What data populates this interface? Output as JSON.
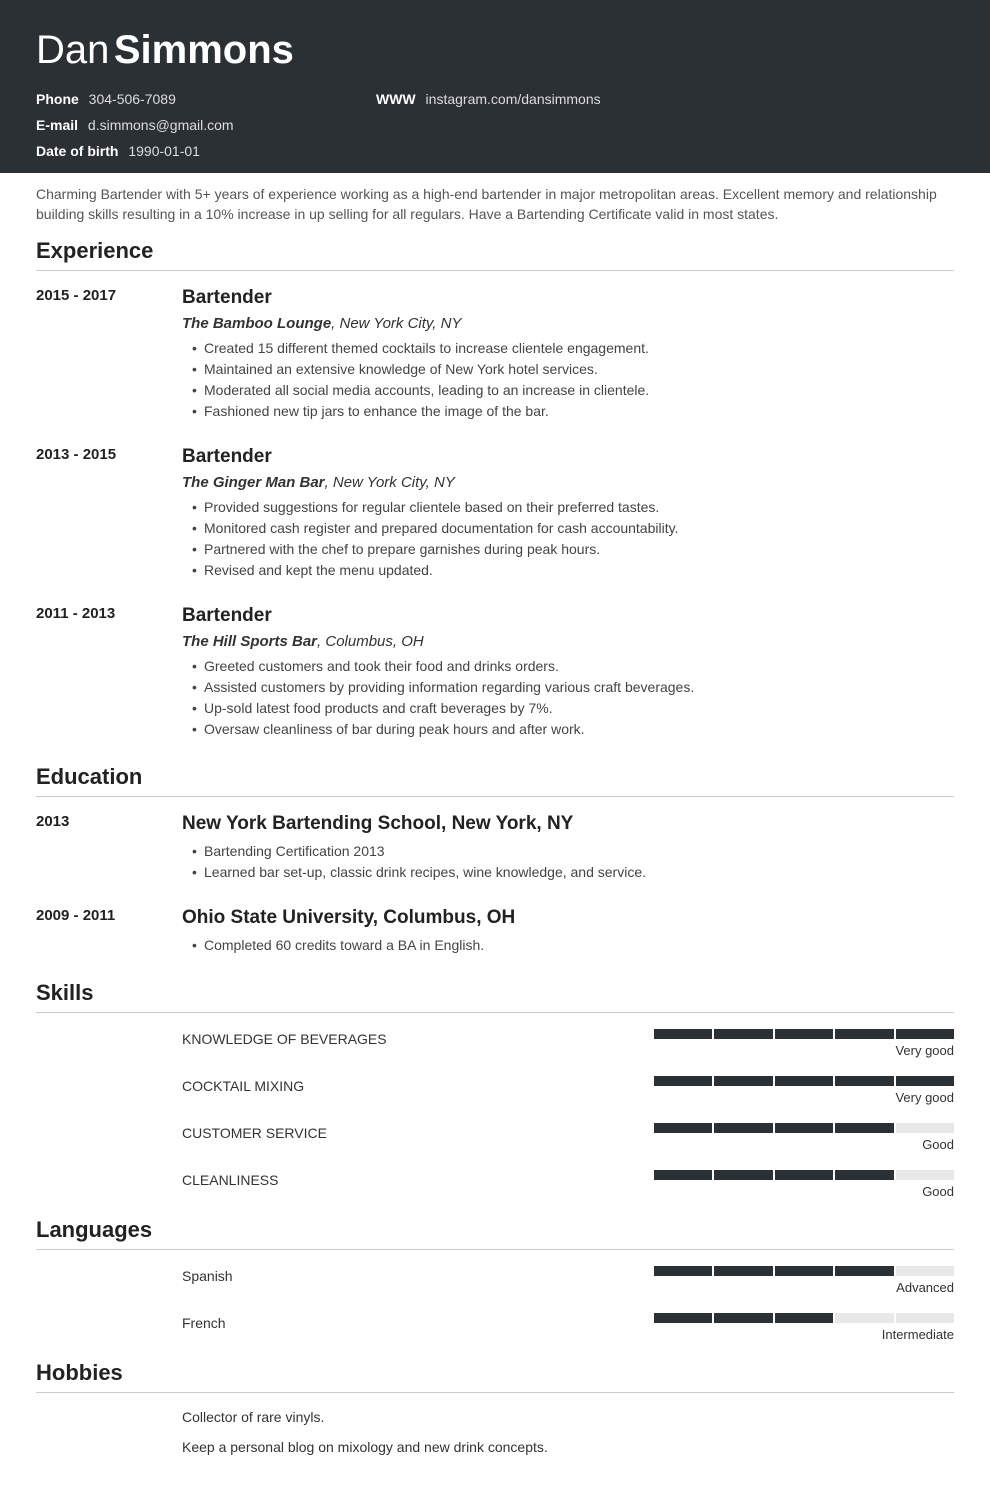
{
  "name": {
    "first": "Dan",
    "last": "Simmons"
  },
  "contact": {
    "phone_label": "Phone",
    "phone": "304-506-7089",
    "www_label": "WWW",
    "www": "instagram.com/dansimmons",
    "email_label": "E-mail",
    "email": "d.simmons@gmail.com",
    "dob_label": "Date of birth",
    "dob": "1990-01-01"
  },
  "summary": "Charming Bartender with 5+ years of experience working as a high-end bartender in major metropolitan areas. Excellent memory and relationship building skills resulting in a 10% increase in up selling for all regulars. Have a Bartending Certificate valid in most states.",
  "sections": {
    "experience": "Experience",
    "education": "Education",
    "skills": "Skills",
    "languages": "Languages",
    "hobbies": "Hobbies"
  },
  "experience": [
    {
      "dates": "2015 - 2017",
      "title": "Bartender",
      "company": "The Bamboo Lounge",
      "location": ", New York City, NY",
      "bullets": [
        "Created 15 different themed cocktails to increase clientele engagement.",
        "Maintained an extensive knowledge of New York hotel services.",
        "Moderated all social media accounts, leading to an increase in clientele.",
        "Fashioned new tip jars to enhance the image of the bar."
      ]
    },
    {
      "dates": "2013 - 2015",
      "title": "Bartender",
      "company": "The Ginger Man Bar",
      "location": ", New York City, NY",
      "bullets": [
        "Provided suggestions for regular clientele based on their preferred tastes.",
        "Monitored cash register and prepared documentation for cash accountability.",
        "Partnered with the chef to prepare garnishes during peak hours.",
        "Revised and kept the menu updated."
      ]
    },
    {
      "dates": "2011 - 2013",
      "title": "Bartender",
      "company": "The Hill Sports Bar",
      "location": ", Columbus, OH",
      "bullets": [
        "Greeted customers and took their food and drinks orders.",
        "Assisted customers by providing information regarding various craft beverages.",
        "Up-sold latest food products and craft beverages by 7%.",
        "Oversaw cleanliness of bar during peak hours and after work."
      ]
    }
  ],
  "education": [
    {
      "dates": "2013",
      "title": "New York Bartending School, New York, NY",
      "bullets": [
        "Bartending Certification 2013",
        "Learned bar set-up, classic drink recipes, wine knowledge, and service."
      ]
    },
    {
      "dates": "2009 - 2011",
      "title": "Ohio State University, Columbus, OH",
      "bullets": [
        "Completed 60 credits toward a BA in English."
      ]
    }
  ],
  "skills": [
    {
      "name": "KNOWLEDGE OF BEVERAGES",
      "level": 5,
      "label": "Very good"
    },
    {
      "name": "COCKTAIL MIXING",
      "level": 5,
      "label": "Very good"
    },
    {
      "name": "CUSTOMER SERVICE",
      "level": 4,
      "label": "Good"
    },
    {
      "name": "CLEANLINESS",
      "level": 4,
      "label": "Good"
    }
  ],
  "languages": [
    {
      "name": "Spanish",
      "level": 4,
      "label": "Advanced"
    },
    {
      "name": "French",
      "level": 3,
      "label": "Intermediate"
    }
  ],
  "hobbies": [
    "Collector of rare vinyls.",
    "Keep a personal blog on mixology and new drink concepts."
  ],
  "styling": {
    "header_bg": "#2b3034",
    "filled_bar": "#2b3034",
    "empty_bar": "#e8e8e8",
    "segments": 5
  }
}
